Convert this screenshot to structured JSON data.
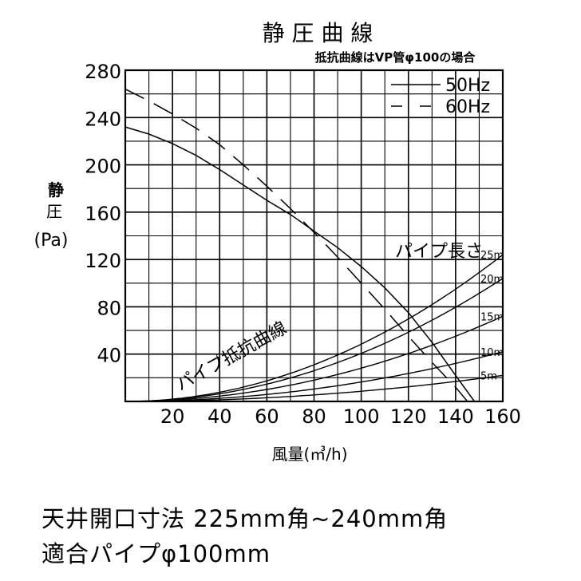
{
  "chart_data": {
    "type": "line",
    "title": "静 圧 曲 線",
    "subtitle": "抵抗曲線はVP管φ100の場合",
    "ylabel_lines": [
      "静",
      "圧",
      "(Pa)"
    ],
    "xlabel": "風量(㎥/h)",
    "xlim": [
      0,
      160
    ],
    "ylim": [
      0,
      280
    ],
    "x_ticks": [
      20,
      40,
      60,
      80,
      100,
      120,
      140,
      160
    ],
    "y_ticks": [
      40,
      80,
      120,
      160,
      200,
      240,
      280
    ],
    "grid": true,
    "legend": {
      "placement": "top-right",
      "entries": [
        {
          "label": "50Hz",
          "style": "solid"
        },
        {
          "label": "60Hz",
          "style": "dashed"
        }
      ]
    },
    "series": [
      {
        "name": "50Hz",
        "style": "solid",
        "x": [
          0,
          10,
          20,
          30,
          40,
          50,
          60,
          70,
          80,
          90,
          100,
          110,
          120,
          130,
          140,
          148
        ],
        "y": [
          232,
          226,
          218,
          208,
          196,
          183,
          170,
          158,
          144,
          130,
          114,
          96,
          75,
          50,
          22,
          0
        ]
      },
      {
        "name": "60Hz",
        "style": "dashed",
        "x": [
          0,
          10,
          20,
          30,
          40,
          50,
          60,
          70,
          80,
          90,
          100,
          110,
          120,
          130,
          140,
          145
        ],
        "y": [
          264,
          254,
          243,
          231,
          217,
          200,
          182,
          163,
          143,
          122,
          100,
          78,
          55,
          33,
          12,
          0
        ]
      }
    ],
    "resistance_curves": {
      "label": "パイプ抵抗曲線",
      "group_label": "パイプ長さ",
      "curves": [
        {
          "label": "25m",
          "y_at_max": 124
        },
        {
          "label": "20m",
          "y_at_max": 104
        },
        {
          "label": "15m",
          "y_at_max": 72
        },
        {
          "label": "10m",
          "y_at_max": 42
        },
        {
          "label": "5m",
          "y_at_max": 22
        }
      ]
    }
  },
  "footer": {
    "line1": "天井開口寸法 225mm角~240mm角",
    "line2": "適合パイプφ100mm"
  }
}
